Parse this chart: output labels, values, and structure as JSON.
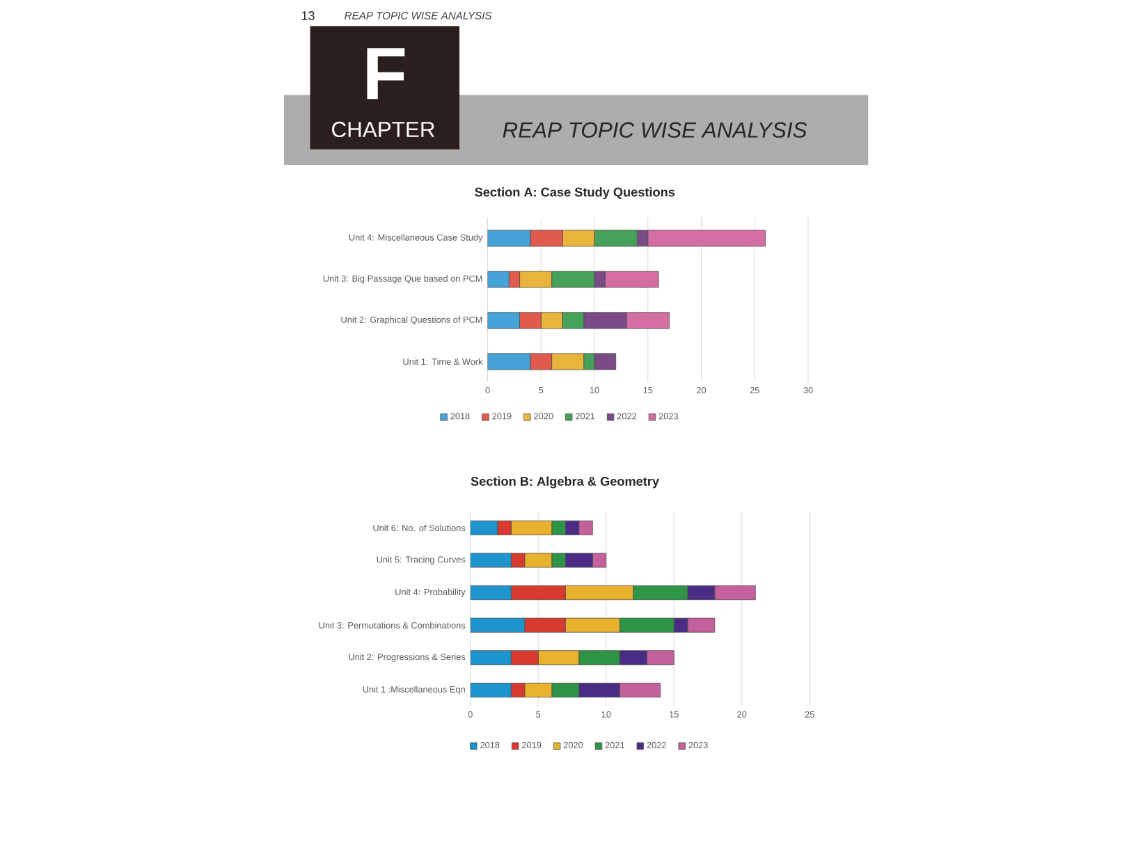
{
  "chart_data": [
    {
      "type": "bar",
      "orientation": "horizontal",
      "stacked": true,
      "title": "Section A: Case Study Questions",
      "categories": [
        "Unit 4: Miscellaneous Case Study",
        "Unit 3: Big Passage Que based on PCM",
        "Unit 2: Graphical Questions of PCM",
        "Unit 1: Time & Work"
      ],
      "series": [
        {
          "name": "2018",
          "color": "#45a3d8",
          "values": [
            4,
            2,
            3,
            4
          ]
        },
        {
          "name": "2019",
          "color": "#e05a4e",
          "values": [
            3,
            1,
            2,
            2
          ]
        },
        {
          "name": "2020",
          "color": "#e9b43c",
          "values": [
            3,
            3,
            2,
            3
          ]
        },
        {
          "name": "2021",
          "color": "#45a058",
          "values": [
            4,
            4,
            2,
            1
          ]
        },
        {
          "name": "2022",
          "color": "#7a4b87",
          "values": [
            1,
            1,
            4,
            2
          ]
        },
        {
          "name": "2023",
          "color": "#d46ea3",
          "values": [
            11,
            5,
            4,
            null
          ]
        }
      ],
      "xlim": [
        0,
        30
      ],
      "xticks": [
        0,
        5,
        10,
        15,
        20,
        25,
        30
      ],
      "grid": "x",
      "legend": "bottom",
      "annotations": [
        "13",
        "REAP TOPIC WISE ANALYSIS",
        "F",
        "CHAPTER",
        "REAP TOPIC WISE ANALYSIS"
      ]
    },
    {
      "type": "bar",
      "orientation": "horizontal",
      "stacked": true,
      "title": "Section B: Algebra & Geometry",
      "categories": [
        "Unit 6: No. of Solutions",
        "Unit 5: Tracing Curves",
        "Unit 4: Probability",
        "Unit 3: Permutations & Combinations",
        "Unit 2: Progressions & Series",
        "Unit 1 :Miscellaneous Eqn"
      ],
      "series": [
        {
          "name": "2018",
          "color": "#1e94cf",
          "values": [
            2,
            3,
            3,
            4,
            3,
            3
          ]
        },
        {
          "name": "2019",
          "color": "#d83a30",
          "values": [
            1,
            1,
            4,
            3,
            2,
            1
          ]
        },
        {
          "name": "2020",
          "color": "#e8b22c",
          "values": [
            3,
            2,
            5,
            4,
            3,
            2
          ]
        },
        {
          "name": "2021",
          "color": "#2e9446",
          "values": [
            1,
            1,
            4,
            4,
            3,
            2
          ]
        },
        {
          "name": "2022",
          "color": "#4a2c85",
          "values": [
            1,
            2,
            2,
            1,
            2,
            3
          ]
        },
        {
          "name": "2023",
          "color": "#c4609c",
          "values": [
            1,
            1,
            3,
            2,
            2,
            3
          ]
        }
      ],
      "xlim": [
        0,
        25
      ],
      "xticks": [
        0,
        5,
        10,
        15,
        20,
        25
      ],
      "grid": "x",
      "legend": "bottom"
    }
  ]
}
